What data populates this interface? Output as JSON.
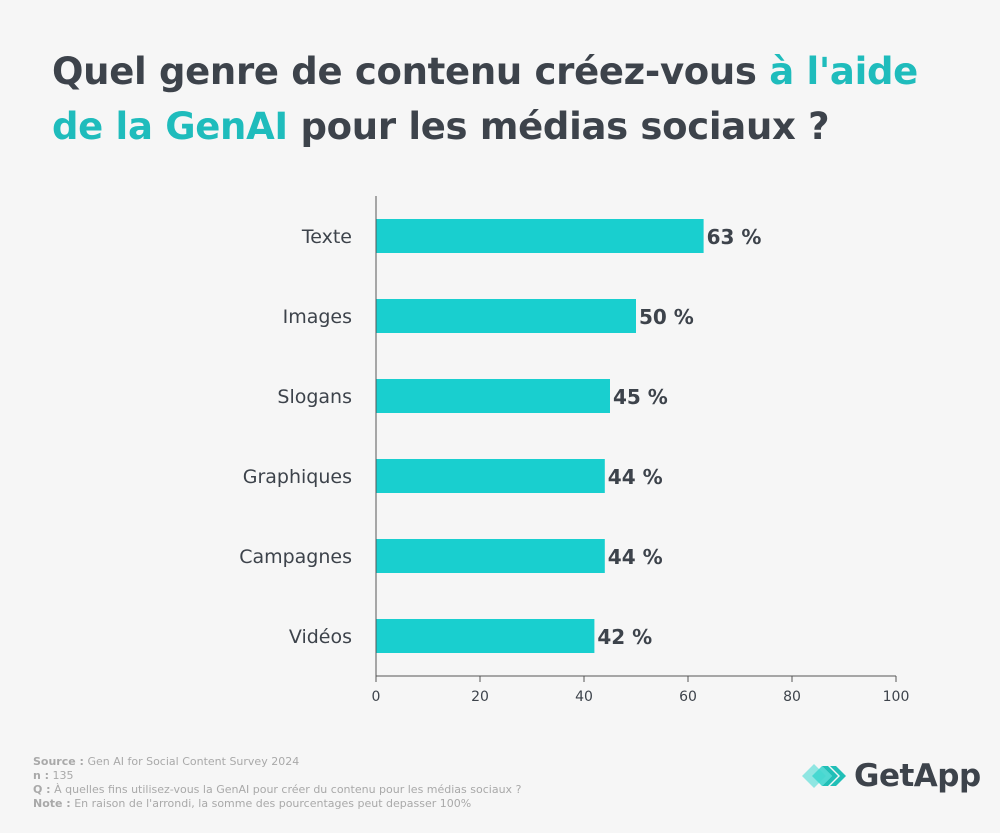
{
  "title": {
    "part1": "Quel genre de contenu créez-vous ",
    "highlight": "à l'aide de la GenAI",
    "part2": " pour les médias sociaux ?"
  },
  "colors": {
    "bar": "#19cfcf",
    "highlight": "#1fbcbc",
    "text": "#3d434b",
    "background": "#f6f6f6"
  },
  "chart_data": {
    "type": "bar",
    "orientation": "horizontal",
    "categories": [
      "Texte",
      "Images",
      "Slogans",
      "Graphiques",
      "Campagnes",
      "Vidéos"
    ],
    "values": [
      63,
      50,
      45,
      44,
      44,
      42
    ],
    "value_labels": [
      "63 %",
      "50 %",
      "45 %",
      "44 %",
      "44 %",
      "42 %"
    ],
    "xlim": [
      0,
      100
    ],
    "xticks": [
      "0",
      "20",
      "40",
      "60",
      "80",
      "100"
    ],
    "grid": false
  },
  "notes": {
    "source_label": "Source :",
    "source": " Gen AI for Social Content Survey 2024",
    "n_label": "n :",
    "n": " 135",
    "q_label": "Q :",
    "q": "  À quelles fins utilisez-vous la GenAI pour créer du contenu pour les médias sociaux ?",
    "note_label": "Note :",
    "note": " En raison de l'arrondi, la somme des pourcentages peut depasser 100%"
  },
  "logo": {
    "text": "GetApp",
    "icon": "getapp-chevrons-icon"
  }
}
